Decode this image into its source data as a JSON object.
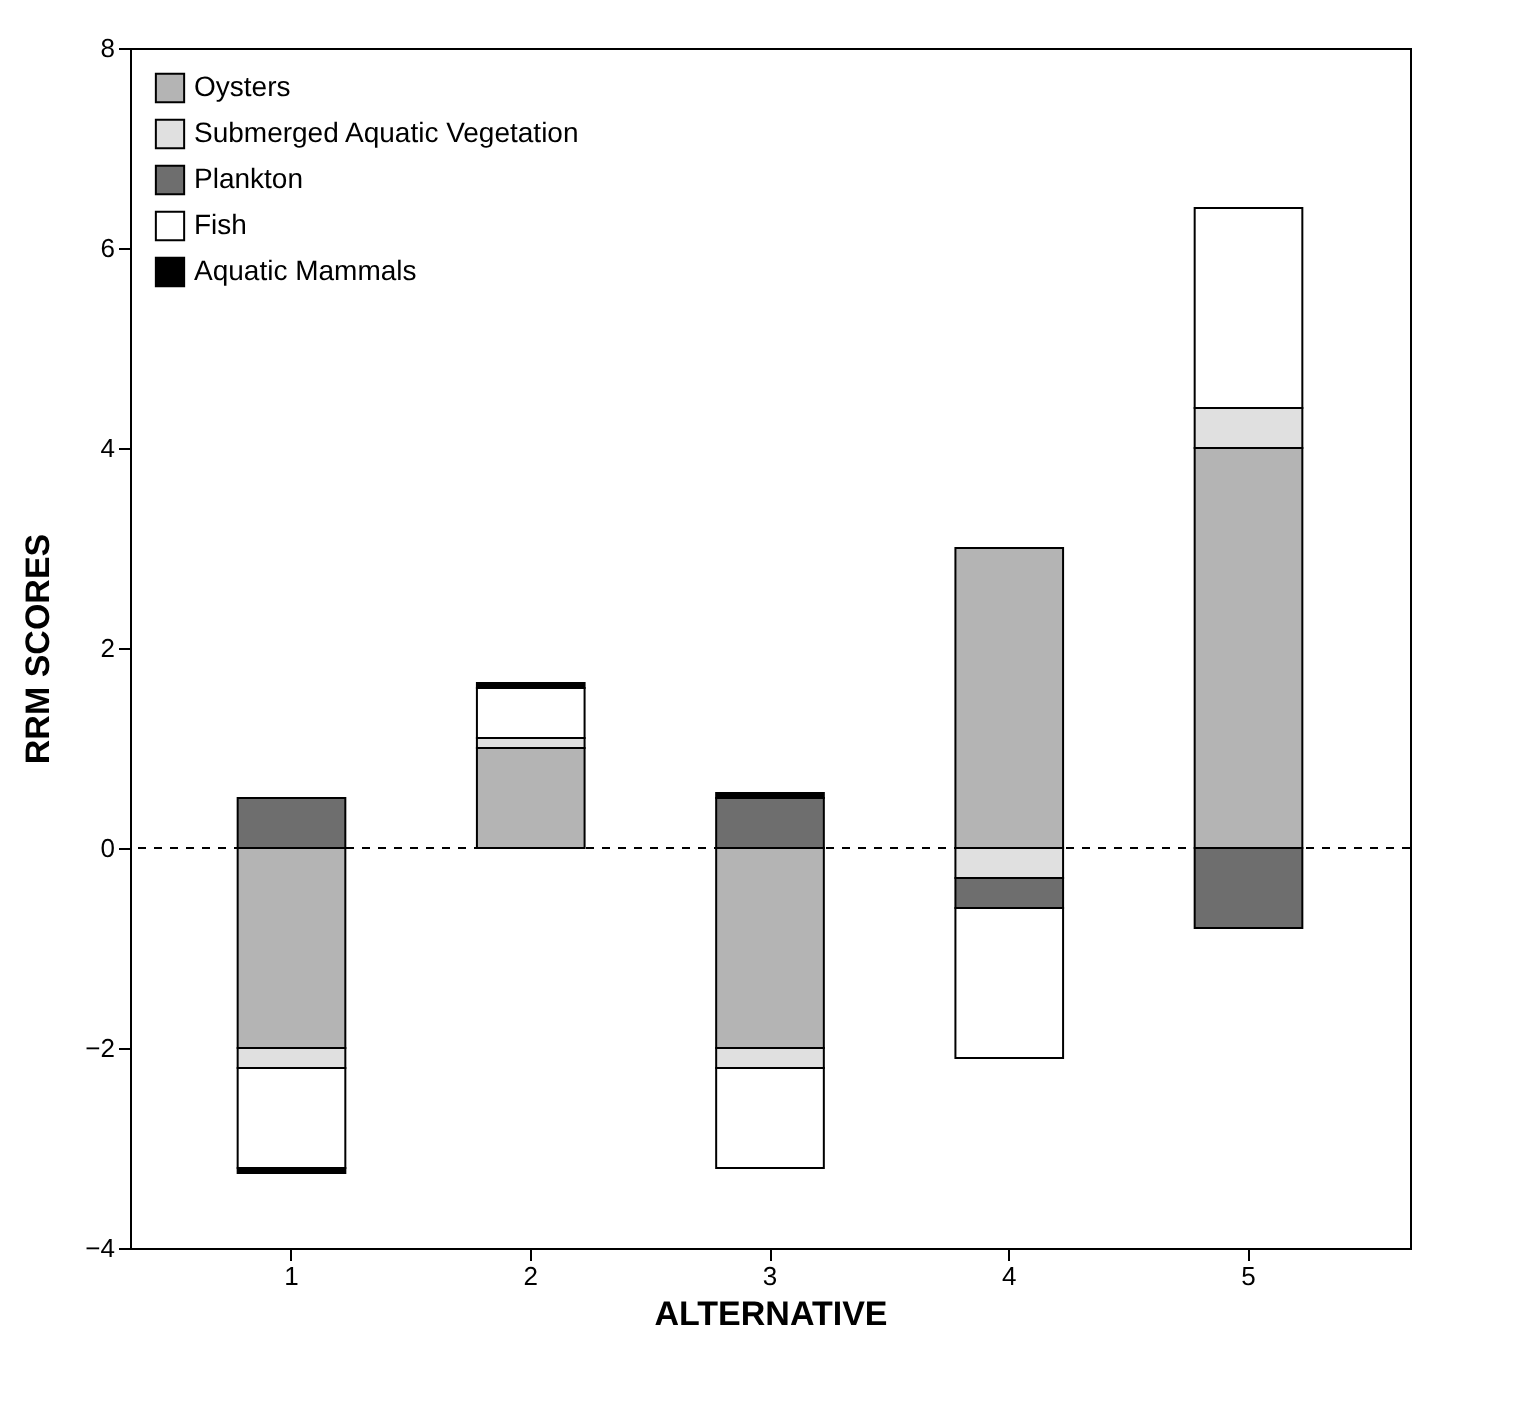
{
  "chart_data": {
    "type": "bar",
    "stacked": true,
    "xlabel": "ALTERNATIVE",
    "ylabel": "RRM SCORES",
    "categories": [
      "1",
      "2",
      "3",
      "4",
      "5"
    ],
    "series": [
      {
        "name": "Oysters",
        "color": "#b4b4b4",
        "values": [
          -2,
          1,
          -2,
          3,
          4
        ]
      },
      {
        "name": "Submerged Aquatic Vegetation",
        "color": "#e0e0e0",
        "values": [
          -0.2,
          0.1,
          -0.2,
          -0.3,
          0.4
        ]
      },
      {
        "name": "Plankton",
        "color": "#6e6e6e",
        "values": [
          0.5,
          null,
          0.5,
          -0.3,
          -0.8
        ]
      },
      {
        "name": "Fish",
        "color": "#ffffff",
        "values": [
          -1.0,
          0.5,
          -1.0,
          -1.5,
          2.0
        ]
      },
      {
        "name": "Aquatic Mammals",
        "color": "#000000",
        "values": [
          -0.05,
          0.05,
          0.05,
          null,
          null
        ]
      }
    ],
    "ylim": [
      -4,
      8
    ],
    "yticks": [
      -4,
      -2,
      0,
      2,
      4,
      6,
      8
    ],
    "grid": false,
    "legend": "top left",
    "ref_lines": [
      {
        "axis": "y",
        "value": 0,
        "line_style": "dashed",
        "color": "#000000"
      }
    ]
  }
}
